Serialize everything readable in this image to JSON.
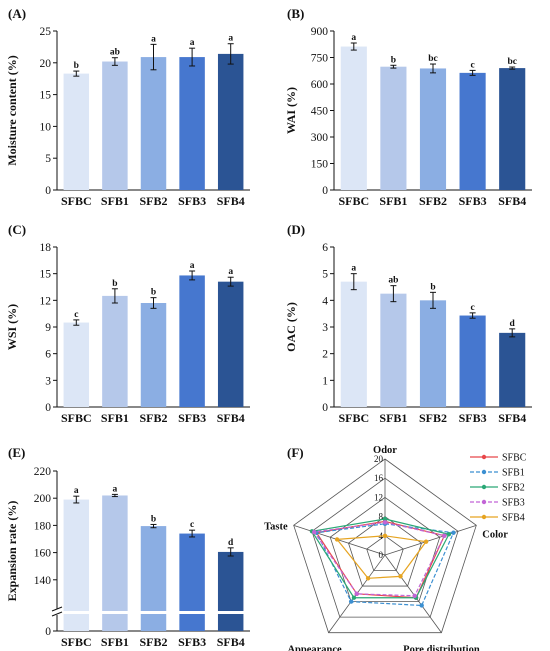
{
  "chart_data": [
    {
      "type": "bar",
      "panel_label": "(A)",
      "ylabel": "Moisture content (%)",
      "ylim": [
        0,
        25
      ],
      "yticks": [
        0,
        5,
        10,
        15,
        20,
        25
      ],
      "categories": [
        "SFBC",
        "SFB1",
        "SFB2",
        "SFB3",
        "SFB4"
      ],
      "values": [
        18.3,
        20.2,
        20.9,
        20.9,
        21.4
      ],
      "errors": [
        0.4,
        0.6,
        2.0,
        1.4,
        1.6
      ],
      "letters": [
        "b",
        "ab",
        "a",
        "a",
        "a"
      ],
      "colors": [
        "#dce6f6",
        "#b5c8ea",
        "#8baee3",
        "#4677cf",
        "#2b5494"
      ]
    },
    {
      "type": "bar",
      "panel_label": "(B)",
      "ylabel": "WAI (%)",
      "ylim": [
        0,
        900
      ],
      "yticks": [
        0,
        150,
        300,
        450,
        600,
        750,
        900
      ],
      "categories": [
        "SFBC",
        "SFB1",
        "SFB2",
        "SFB3",
        "SFB4"
      ],
      "values": [
        812,
        698,
        688,
        663,
        690
      ],
      "errors": [
        20,
        8,
        25,
        14,
        6
      ],
      "letters": [
        "a",
        "b",
        "bc",
        "c",
        "bc"
      ],
      "colors": [
        "#dce6f6",
        "#b5c8ea",
        "#8baee3",
        "#4677cf",
        "#2b5494"
      ]
    },
    {
      "type": "bar",
      "panel_label": "(C)",
      "ylabel": "WSI (%)",
      "ylim": [
        0,
        18
      ],
      "yticks": [
        0,
        3,
        6,
        9,
        12,
        15,
        18
      ],
      "categories": [
        "SFBC",
        "SFB1",
        "SFB2",
        "SFB3",
        "SFB4"
      ],
      "values": [
        9.5,
        12.5,
        11.7,
        14.8,
        14.1
      ],
      "errors": [
        0.3,
        0.8,
        0.6,
        0.5,
        0.5
      ],
      "letters": [
        "c",
        "b",
        "b",
        "a",
        "a"
      ],
      "colors": [
        "#dce6f6",
        "#b5c8ea",
        "#8baee3",
        "#4677cf",
        "#2b5494"
      ]
    },
    {
      "type": "bar",
      "panel_label": "(D)",
      "ylabel": "OAC (%)",
      "ylim": [
        0,
        6
      ],
      "yticks": [
        0,
        1,
        2,
        3,
        4,
        5,
        6
      ],
      "categories": [
        "SFBC",
        "SFB1",
        "SFB2",
        "SFB3",
        "SFB4"
      ],
      "values": [
        4.7,
        4.25,
        4.0,
        3.43,
        2.78
      ],
      "errors": [
        0.3,
        0.3,
        0.3,
        0.1,
        0.15
      ],
      "letters": [
        "a",
        "ab",
        "b",
        "c",
        "d"
      ],
      "colors": [
        "#dce6f6",
        "#b5c8ea",
        "#8baee3",
        "#4677cf",
        "#2b5494"
      ]
    },
    {
      "type": "bar",
      "panel_label": "(E)",
      "ylabel": "Expansion rate (%)",
      "ylim": [
        120,
        220
      ],
      "axis_break": true,
      "yticks": [
        0,
        140,
        160,
        180,
        200,
        220
      ],
      "categories": [
        "SFBC",
        "SFB1",
        "SFB2",
        "SFB3",
        "SFB4"
      ],
      "values": [
        199,
        202,
        179.5,
        174,
        160.5
      ],
      "errors": [
        2.5,
        0.8,
        1.2,
        2.5,
        3.0
      ],
      "letters": [
        "a",
        "a",
        "b",
        "c",
        "d"
      ],
      "colors": [
        "#dce6f6",
        "#b5c8ea",
        "#8baee3",
        "#4677cf",
        "#2b5494"
      ]
    },
    {
      "type": "radar",
      "panel_label": "(F)",
      "axes": [
        "Odor",
        "Color",
        "Pore distribution",
        "Appearance",
        "Taste"
      ],
      "rlim": [
        0,
        20
      ],
      "rticks": [
        0,
        4,
        8,
        12,
        16,
        20
      ],
      "legend_position": "right",
      "series": [
        {
          "name": "SFBC",
          "values": [
            7,
            13,
            11,
            10,
            15
          ],
          "color": "#e8474a",
          "dash": "solid"
        },
        {
          "name": "SFB1",
          "values": [
            6.5,
            15,
            13,
            12,
            15
          ],
          "color": "#3b8fd1",
          "dash": "dashed"
        },
        {
          "name": "SFB2",
          "values": [
            7.5,
            14,
            11,
            11,
            16
          ],
          "color": "#2aa876",
          "dash": "solid"
        },
        {
          "name": "SFB3",
          "values": [
            6.8,
            13,
            10.5,
            10,
            15.5
          ],
          "color": "#c265d6",
          "dash": "dashed"
        },
        {
          "name": "SFB4",
          "values": [
            4,
            9,
            5.5,
            6,
            10.5
          ],
          "color": "#e6a421",
          "dash": "solid"
        }
      ]
    }
  ]
}
